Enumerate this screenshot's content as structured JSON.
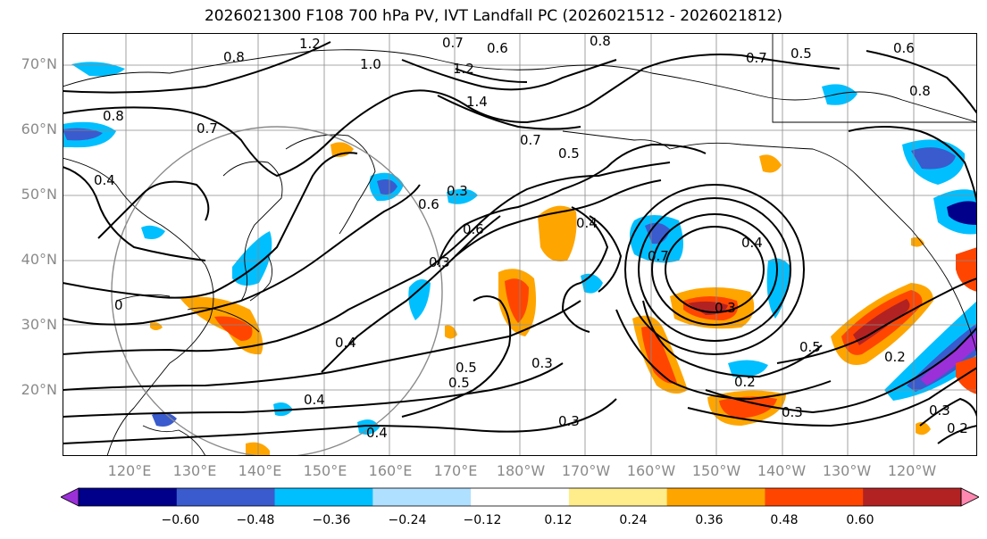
{
  "title": "2026021300 F108 700 hPa PV, IVT Landfall PC (2026021512 - 2026021812)",
  "lat_labels": [
    "70°N",
    "60°N",
    "50°N",
    "40°N",
    "30°N",
    "20°N"
  ],
  "lon_labels": [
    "120°E",
    "130°E",
    "140°E",
    "150°E",
    "160°E",
    "170°E",
    "180°W",
    "170°W",
    "160°W",
    "150°W",
    "140°W",
    "130°W",
    "120°W"
  ],
  "colorbar": {
    "colors": [
      "#9b30d9",
      "#00008b",
      "#3a5bcd",
      "#00bfff",
      "#b0e0ff",
      "#ffffff",
      "#ffec8b",
      "#ffa500",
      "#ff4500",
      "#b22222",
      "#ff88b0"
    ],
    "tick_labels": [
      "−0.60",
      "−0.48",
      "−0.36",
      "−0.24",
      "−0.12",
      "0.12",
      "0.24",
      "0.36",
      "0.48",
      "0.60"
    ]
  },
  "contour_labels": [
    "1.2",
    "0.8",
    "0.7",
    "0.6",
    "1.0",
    "1.2",
    "1.4",
    "0.8",
    "0.7",
    "0.5",
    "0.6",
    "0.8",
    "0.8",
    "0.4",
    "0.7",
    "0.5",
    "0.7",
    "0.6",
    "0.3",
    "0.6",
    "0.4",
    "0.3",
    "0.7",
    "0.4",
    "0.3",
    "0.4",
    "0.3",
    "0.4",
    "0.5",
    "0.2",
    "0.3",
    "0.5",
    "0.2",
    "0.3",
    "0.2",
    "0.4",
    "0.5",
    "0.3",
    "0"
  ]
}
